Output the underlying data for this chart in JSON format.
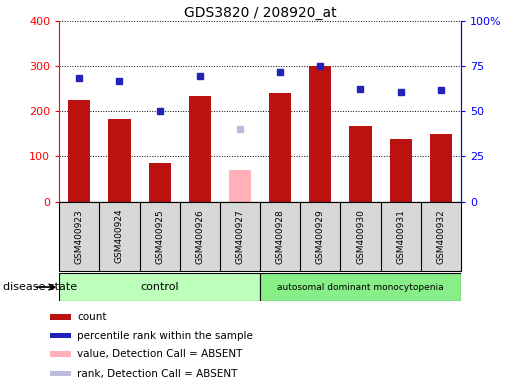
{
  "title": "GDS3820 / 208920_at",
  "samples": [
    "GSM400923",
    "GSM400924",
    "GSM400925",
    "GSM400926",
    "GSM400927",
    "GSM400928",
    "GSM400929",
    "GSM400930",
    "GSM400931",
    "GSM400932"
  ],
  "count_values": [
    225,
    182,
    85,
    235,
    null,
    240,
    300,
    167,
    138,
    150
  ],
  "count_absent": [
    null,
    null,
    null,
    null,
    70,
    null,
    null,
    null,
    null,
    null
  ],
  "rank_values": [
    275,
    268,
    201,
    278,
    null,
    287,
    300,
    250,
    243,
    248
  ],
  "rank_absent": [
    null,
    null,
    null,
    null,
    160,
    null,
    null,
    null,
    null,
    null
  ],
  "n_control": 5,
  "n_disease": 5,
  "ylim_left": [
    0,
    400
  ],
  "ylim_right": [
    0,
    100
  ],
  "bar_color_present": "#bb1111",
  "bar_color_absent": "#ffb0b8",
  "dot_color_present": "#2222bb",
  "dot_color_absent": "#bbbbdd",
  "legend_items": [
    {
      "label": "count",
      "color": "#bb1111"
    },
    {
      "label": "percentile rank within the sample",
      "color": "#2222bb"
    },
    {
      "label": "value, Detection Call = ABSENT",
      "color": "#ffb0b8"
    },
    {
      "label": "rank, Detection Call = ABSENT",
      "color": "#bbbbdd"
    }
  ]
}
